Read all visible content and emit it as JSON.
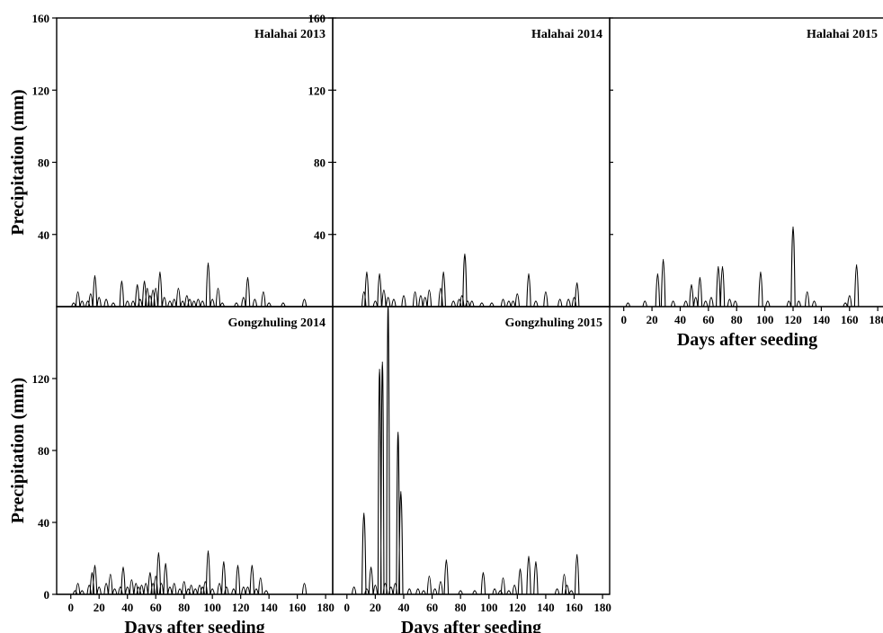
{
  "figure": {
    "ylabel": "Precipitation (mm)",
    "xlabel": "Days after seeding"
  },
  "chart_data": [
    {
      "type": "line",
      "title": "Halahai 2013",
      "xlabel": "",
      "ylabel": "Precipitation (mm)",
      "xlim": [
        -10,
        185
      ],
      "ylim": [
        0,
        160
      ],
      "yticks": [
        40,
        80,
        120,
        160
      ],
      "xticks": [],
      "series": [
        {
          "x": [
            2,
            5,
            8,
            12,
            14,
            17,
            20,
            25,
            30,
            36,
            40,
            44,
            47,
            49,
            52,
            54,
            56,
            58,
            60,
            63,
            66,
            70,
            73,
            76,
            79,
            82,
            84,
            87,
            90,
            93,
            97,
            100,
            104,
            107,
            117,
            122,
            125,
            130,
            136,
            140,
            150,
            165
          ],
          "y": [
            2,
            8,
            3,
            3,
            7,
            17,
            5,
            4,
            2,
            14,
            3,
            3,
            12,
            4,
            14,
            10,
            6,
            9,
            10,
            19,
            5,
            3,
            4,
            10,
            3,
            6,
            4,
            3,
            4,
            3,
            24,
            4,
            10,
            2,
            2,
            5,
            16,
            4,
            8,
            2,
            2,
            4
          ]
        }
      ]
    },
    {
      "type": "line",
      "title": "Halahai 2014",
      "xlabel": "",
      "ylabel": "",
      "xlim": [
        -10,
        185
      ],
      "ylim": [
        0,
        160
      ],
      "yticks": [
        40,
        80,
        120,
        160
      ],
      "xticks": [],
      "series": [
        {
          "x": [
            12,
            14,
            20,
            23,
            26,
            29,
            33,
            40,
            48,
            52,
            55,
            58,
            66,
            68,
            75,
            79,
            81,
            83,
            85,
            88,
            95,
            102,
            110,
            114,
            117,
            120,
            128,
            133,
            140,
            150,
            156,
            160,
            162
          ],
          "y": [
            8,
            19,
            3,
            18,
            9,
            5,
            4,
            6,
            8,
            6,
            5,
            9,
            10,
            19,
            3,
            4,
            6,
            29,
            3,
            3,
            2,
            2,
            4,
            3,
            3,
            7,
            18,
            3,
            8,
            4,
            4,
            5,
            13
          ]
        }
      ]
    },
    {
      "type": "line",
      "title": "Halahai 2015",
      "xlabel": "Days after seeding",
      "ylabel": "",
      "xlim": [
        -10,
        185
      ],
      "ylim": [
        0,
        160
      ],
      "yticks": [],
      "xticks": [
        0,
        20,
        40,
        60,
        80,
        100,
        120,
        140,
        160,
        180
      ],
      "series": [
        {
          "x": [
            3,
            15,
            24,
            28,
            35,
            44,
            48,
            51,
            54,
            58,
            62,
            67,
            70,
            75,
            79,
            97,
            102,
            117,
            120,
            124,
            130,
            135,
            157,
            160,
            165
          ],
          "y": [
            2,
            3,
            18,
            26,
            3,
            3,
            12,
            5,
            16,
            3,
            5,
            22,
            22,
            4,
            3,
            19,
            3,
            3,
            44,
            3,
            8,
            3,
            2,
            6,
            23
          ]
        }
      ]
    },
    {
      "type": "line",
      "title": "Gongzhuling 2014",
      "xlabel": "Days after seeding",
      "ylabel": "Precipitation (mm)",
      "xlim": [
        -10,
        185
      ],
      "ylim": [
        0,
        160
      ],
      "yticks": [
        0,
        40,
        80,
        120
      ],
      "xticks": [
        0,
        20,
        40,
        60,
        80,
        100,
        120,
        140,
        160,
        180
      ],
      "series": [
        {
          "x": [
            3,
            5,
            8,
            13,
            15,
            17,
            20,
            25,
            28,
            31,
            35,
            37,
            40,
            43,
            46,
            48,
            50,
            53,
            56,
            58,
            60,
            62,
            64,
            67,
            70,
            73,
            77,
            80,
            83,
            85,
            88,
            91,
            93,
            95,
            97,
            100,
            105,
            108,
            110,
            115,
            118,
            122,
            125,
            128,
            131,
            134,
            138,
            165
          ],
          "y": [
            2,
            6,
            2,
            5,
            12,
            16,
            4,
            6,
            11,
            3,
            4,
            15,
            4,
            8,
            6,
            4,
            5,
            6,
            12,
            6,
            10,
            23,
            6,
            17,
            4,
            6,
            3,
            7,
            3,
            5,
            3,
            5,
            4,
            7,
            24,
            3,
            6,
            18,
            4,
            3,
            16,
            4,
            4,
            16,
            3,
            9,
            2,
            6
          ]
        }
      ]
    },
    {
      "type": "line",
      "title": "Gongzhuling 2015",
      "xlabel": "Days after seeding",
      "ylabel": "",
      "xlim": [
        -10,
        185
      ],
      "ylim": [
        0,
        160
      ],
      "yticks": [],
      "xticks": [
        0,
        20,
        40,
        60,
        80,
        100,
        120,
        140,
        160,
        180
      ],
      "series": [
        {
          "x": [
            5,
            12,
            14,
            17,
            20,
            23,
            25,
            27,
            29,
            31,
            34,
            36,
            38,
            44,
            50,
            54,
            58,
            62,
            66,
            70,
            80,
            90,
            96,
            104,
            108,
            110,
            114,
            118,
            122,
            128,
            133,
            148,
            153,
            155,
            158,
            162
          ],
          "y": [
            4,
            45,
            3,
            15,
            5,
            125,
            129,
            6,
            160,
            4,
            6,
            90,
            57,
            3,
            3,
            2,
            10,
            3,
            7,
            19,
            2,
            2,
            12,
            3,
            2,
            9,
            2,
            5,
            14,
            21,
            18,
            3,
            11,
            5,
            2,
            22
          ]
        }
      ]
    }
  ]
}
